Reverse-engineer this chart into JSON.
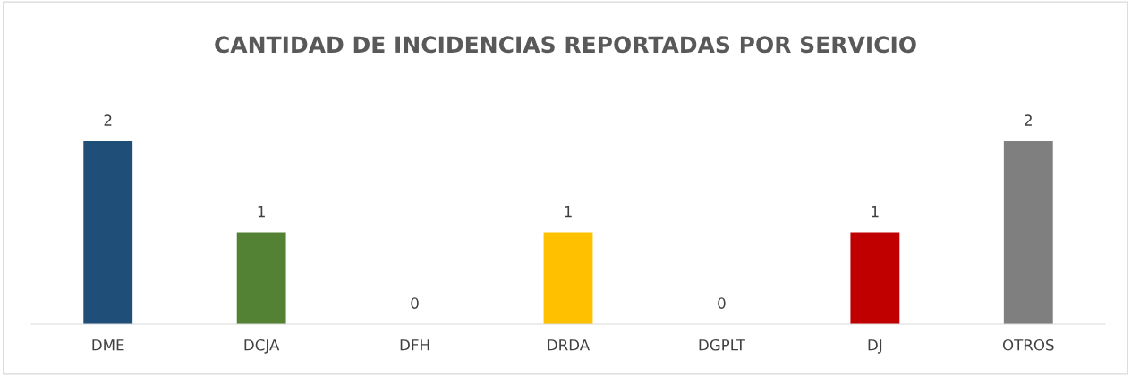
{
  "chart_data": {
    "type": "bar",
    "title": "CANTIDAD DE INCIDENCIAS REPORTADAS POR SERVICIO",
    "categories": [
      "DME",
      "DCJA",
      "DFH",
      "DRDA",
      "DGPLT",
      "DJ",
      "OTROS"
    ],
    "values": [
      2,
      1,
      0,
      1,
      0,
      1,
      2
    ],
    "colors": [
      "#1f4e79",
      "#548235",
      null,
      "#ffc000",
      null,
      "#c00000",
      "#7f7f7f"
    ],
    "data_labels": true,
    "grid": false,
    "legend": false
  }
}
